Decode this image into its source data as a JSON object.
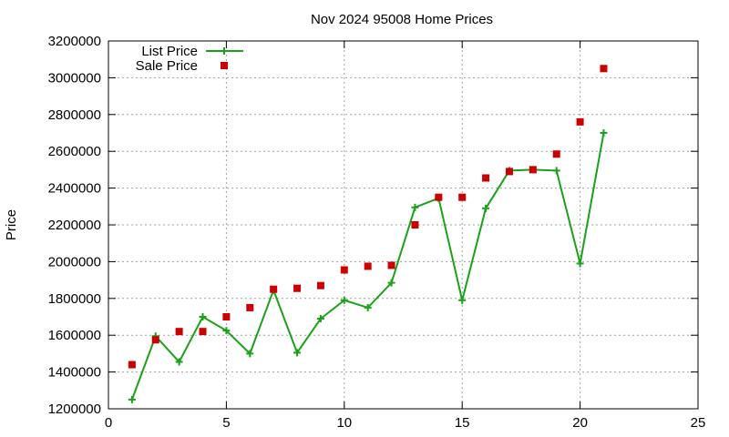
{
  "chart_data": {
    "type": "scatter",
    "title": "Nov 2024 95008 Home Prices",
    "xlabel": "",
    "ylabel": "Price",
    "xlim": [
      0,
      25
    ],
    "ylim": [
      1200000,
      3200000
    ],
    "x_ticks": [
      "0",
      "5",
      "10",
      "15",
      "20",
      "25"
    ],
    "y_ticks": [
      "1200000",
      "1400000",
      "1600000",
      "1800000",
      "2000000",
      "2200000",
      "2400000",
      "2600000",
      "2800000",
      "3000000",
      "3200000"
    ],
    "grid": true,
    "legend_position": "top-left",
    "series": [
      {
        "name": "List Price",
        "style": "linespoints",
        "marker": "plus",
        "color": "#1aa01a",
        "x": [
          1,
          2,
          3,
          4,
          5,
          6,
          7,
          8,
          9,
          10,
          11,
          12,
          13,
          14,
          15,
          16,
          17,
          18,
          19,
          20,
          21
        ],
        "values": [
          1250000,
          1595000,
          1455000,
          1700000,
          1625000,
          1500000,
          1845000,
          1505000,
          1690000,
          1790000,
          1750000,
          1885000,
          2295000,
          2345000,
          1790000,
          2290000,
          2495000,
          2500000,
          2495000,
          1990000,
          2700000
        ]
      },
      {
        "name": "Sale Price",
        "style": "points",
        "marker": "square",
        "color": "#cc0000",
        "x": [
          1,
          2,
          3,
          4,
          5,
          6,
          7,
          8,
          9,
          10,
          11,
          12,
          13,
          14,
          15,
          16,
          17,
          18,
          19,
          20,
          21
        ],
        "values": [
          1440000,
          1575000,
          1620000,
          1620000,
          1700000,
          1750000,
          1850000,
          1855000,
          1870000,
          1955000,
          1975000,
          1980000,
          2200000,
          2350000,
          2350000,
          2455000,
          2490000,
          2500000,
          2585000,
          2760000,
          3050000
        ]
      }
    ]
  }
}
